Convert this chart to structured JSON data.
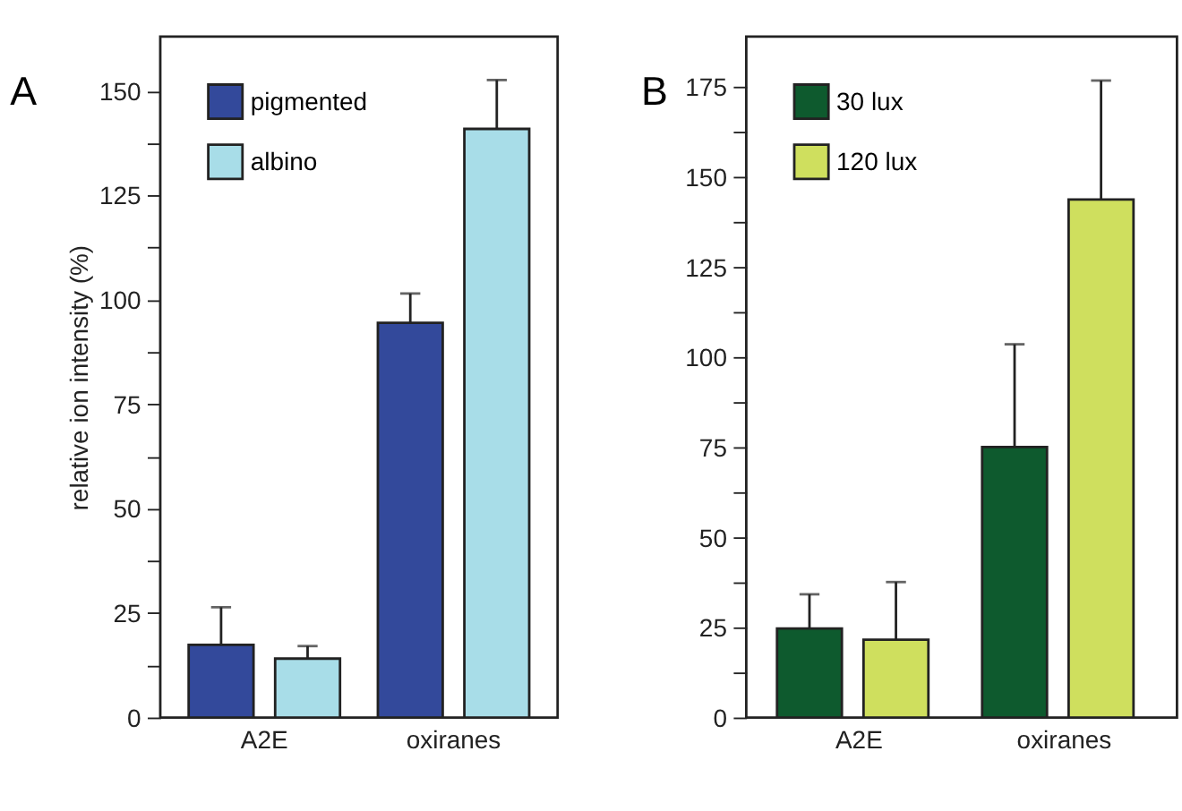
{
  "chart_data": [
    {
      "type": "bar",
      "title": "A",
      "ylabel": "relative ion intensity (%)",
      "categories": [
        "A2E",
        "oxiranes"
      ],
      "series": [
        {
          "name": "pigmented",
          "color": "#33499b",
          "values": [
            17.4,
            94.5
          ],
          "errors": [
            [
              17.4,
              26.4
            ],
            [
              94.5,
              101.5
            ]
          ]
        },
        {
          "name": "albino",
          "color": "#a8dde8",
          "values": [
            14.1,
            140.9
          ],
          "errors": [
            [
              14.1,
              17.1
            ],
            [
              140.9,
              152.6
            ]
          ]
        }
      ],
      "ylim": [
        0,
        163
      ],
      "yticks": [
        0,
        {
          "value": 12.5,
          "label": null
        },
        25,
        {
          "value": 37.5,
          "label": null
        },
        50,
        {
          "value": 62.5,
          "label": null
        },
        75,
        {
          "value": 87.5,
          "label": null
        },
        100,
        {
          "value": 112.5,
          "label": null
        },
        125,
        {
          "value": 137.5,
          "label": null
        },
        150
      ],
      "legend": "top left"
    },
    {
      "type": "bar",
      "title": "B",
      "categories": [
        "A2E",
        "oxiranes"
      ],
      "series": [
        {
          "name": "30 lux",
          "color": "#0e5a2e",
          "values": [
            24.7,
            75.1
          ],
          "errors": [
            [
              24.7,
              34.2
            ],
            [
              75.1,
              103.6
            ]
          ]
        },
        {
          "name": "120 lux",
          "color": "#cfdf5e",
          "values": [
            21.6,
            143.8
          ],
          "errors": [
            [
              21.6,
              37.6
            ],
            [
              143.8,
              176.8
            ]
          ]
        }
      ],
      "ylim": [
        0,
        189
      ],
      "yticks": [
        0,
        {
          "value": 12.5,
          "label": null
        },
        25,
        {
          "value": 37.5,
          "label": null
        },
        50,
        {
          "value": 62.5,
          "label": null
        },
        75,
        {
          "value": 87.5,
          "label": null
        },
        100,
        {
          "value": 112.5,
          "label": null
        },
        125,
        {
          "value": 137.5,
          "label": null
        },
        150,
        {
          "value": 162.5,
          "label": null
        },
        175
      ],
      "legend": "top left"
    }
  ]
}
